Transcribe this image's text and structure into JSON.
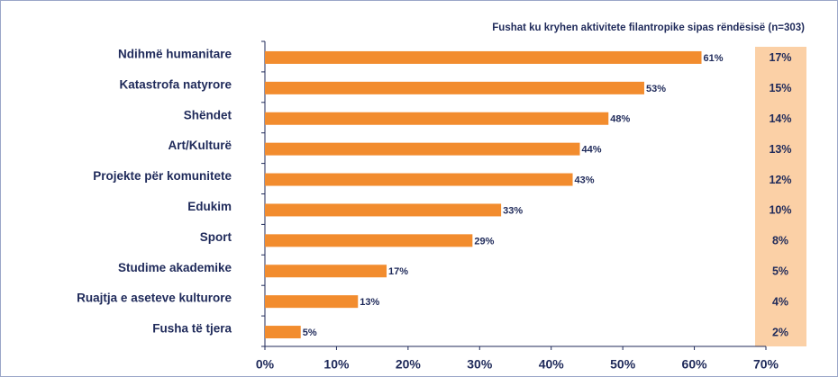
{
  "chart_data": {
    "type": "barh",
    "title": "Fushat ku kryhen aktivitete filantropike sipas rëndësisë (n=303)",
    "categories": [
      "Ndihmë humanitare",
      "Katastrofa natyrore",
      "Shëndet",
      "Art/Kulturë",
      "Projekte për komunitete",
      "Edukim",
      "Sport",
      "Studime akademike",
      "Ruajtja e aseteve kulturore",
      "Fusha të tjera"
    ],
    "values": [
      61,
      53,
      48,
      44,
      43,
      33,
      29,
      17,
      13,
      5
    ],
    "value_labels": [
      "61%",
      "53%",
      "48%",
      "44%",
      "43%",
      "33%",
      "29%",
      "17%",
      "13%",
      "5%"
    ],
    "color": "#f28c2e",
    "share_labels": [
      "17%",
      "15%",
      "14%",
      "13%",
      "12%",
      "10%",
      "8%",
      "5%",
      "4%",
      "2%"
    ],
    "share_color": "#fbd0a6",
    "xlim": [
      0,
      70
    ],
    "xticks": [
      {
        "value": 0,
        "label": "0%"
      },
      {
        "value": 10,
        "label": "10%"
      },
      {
        "value": 20,
        "label": "20%"
      },
      {
        "value": 30,
        "label": "30%"
      },
      {
        "value": 40,
        "label": "40%"
      },
      {
        "value": 50,
        "label": "50%"
      },
      {
        "value": 60,
        "label": "60%"
      },
      {
        "value": 70,
        "label": "70%"
      }
    ]
  }
}
